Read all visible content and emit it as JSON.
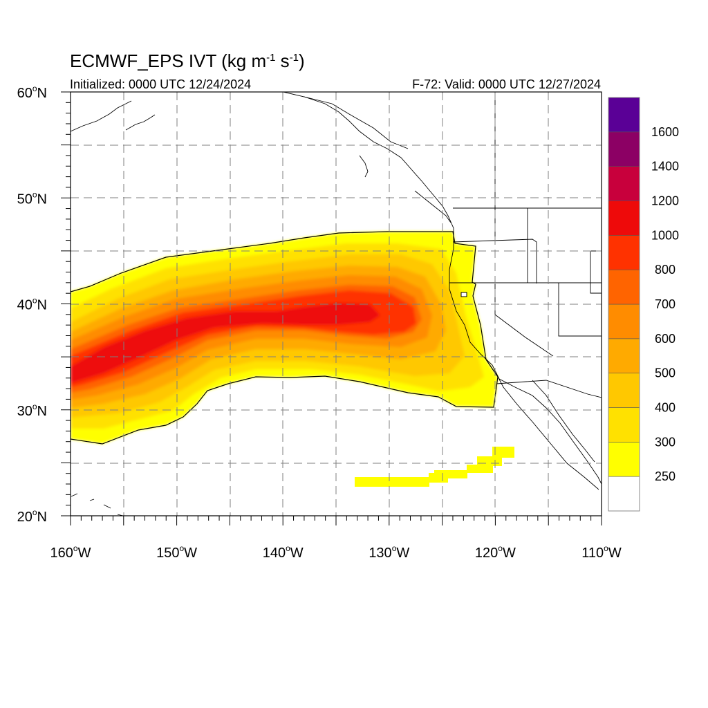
{
  "title": {
    "main_prefix": "ECMWF_EPS IVT (kg m",
    "main_mid": " s",
    "main_suffix": ")",
    "exp": "-1",
    "left_sub": "Initialized: 0000 UTC 12/24/2024",
    "right_sub": "F-72: Valid: 0000 UTC 12/27/2024"
  },
  "map": {
    "lon_range": [
      -160,
      -110
    ],
    "lat_range": [
      20,
      60
    ],
    "grid_lon_step": 5,
    "grid_lat_step": 5,
    "grid": "dashed",
    "lat_ticks": [
      {
        "value": 60,
        "label": "60",
        "hemi": "N"
      },
      {
        "value": 50,
        "label": "50",
        "hemi": "N"
      },
      {
        "value": 40,
        "label": "40",
        "hemi": "N"
      },
      {
        "value": 30,
        "label": "30",
        "hemi": "N"
      },
      {
        "value": 20,
        "label": "20",
        "hemi": "N"
      }
    ],
    "lon_ticks": [
      {
        "value": -160,
        "label": "160",
        "hemi": "W"
      },
      {
        "value": -150,
        "label": "150",
        "hemi": "W"
      },
      {
        "value": -140,
        "label": "140",
        "hemi": "W"
      },
      {
        "value": -130,
        "label": "130",
        "hemi": "W"
      },
      {
        "value": -120,
        "label": "120",
        "hemi": "W"
      },
      {
        "value": -110,
        "label": "110",
        "hemi": "W"
      }
    ],
    "degree_symbol": "o"
  },
  "colorbar": {
    "levels": [
      250,
      300,
      400,
      500,
      600,
      700,
      800,
      1000,
      1200,
      1400,
      1600
    ],
    "labels": [
      "250",
      "300",
      "400",
      "500",
      "600",
      "700",
      "800",
      "1000",
      "1200",
      "1400",
      "1600"
    ],
    "colors": [
      "#ffffff",
      "#ffff00",
      "#ffe100",
      "#ffc800",
      "#ffaa00",
      "#ff8c00",
      "#ff6400",
      "#ff3200",
      "#ee0a0a",
      "#c8003c",
      "#8c0064",
      "#5a0096"
    ]
  },
  "ivt_field": {
    "regions": [
      {
        "name": "ar-core-band",
        "level_min": 250,
        "level_max": 1200
      },
      {
        "name": "subtropical-strip",
        "level_min": 250,
        "level_max": 300
      }
    ]
  }
}
